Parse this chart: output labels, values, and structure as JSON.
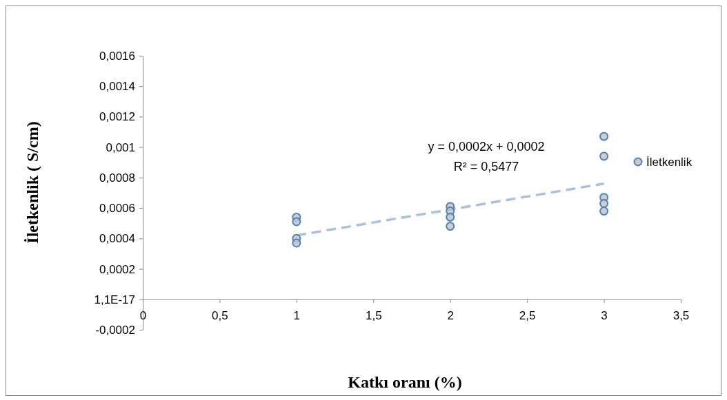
{
  "chart_data": {
    "type": "scatter",
    "xlabel": "Katkı oranı (%)",
    "ylabel": "İletkenlik ( S/cm)",
    "xlim": [
      0,
      3.5
    ],
    "ylim": [
      -0.0002,
      0.0016
    ],
    "xticks": [
      0,
      {
        "value": 0.5,
        "label": "0,5"
      },
      1,
      {
        "value": 1.5,
        "label": "1,5"
      },
      2,
      {
        "value": 2.5,
        "label": "2,5"
      },
      3,
      {
        "value": 3.5,
        "label": "3,5"
      }
    ],
    "yticks": [
      {
        "value": -0.0002,
        "label": "-0,0002"
      },
      {
        "value": 0,
        "label": "1,1E-17"
      },
      {
        "value": 0.0002,
        "label": "0,0002"
      },
      {
        "value": 0.0004,
        "label": "0,0004"
      },
      {
        "value": 0.0006,
        "label": "0,0006"
      },
      {
        "value": 0.0008,
        "label": "0,0008"
      },
      {
        "value": 0.001,
        "label": "0,001"
      },
      {
        "value": 0.0012,
        "label": "0,0012"
      },
      {
        "value": 0.0014,
        "label": "0,0014"
      },
      {
        "value": 0.0016,
        "label": "0,0016"
      }
    ],
    "grid": false,
    "legend": "right",
    "annotations": [
      "y = 0,0002x + 0,0002",
      "R² = 0,5477"
    ],
    "series": [
      {
        "name": "İletkenlik",
        "color": "#4f81bd",
        "marker": "circle",
        "x": [
          1,
          1,
          1,
          1,
          2,
          2,
          2,
          2,
          3,
          3,
          3,
          3,
          3
        ],
        "values": [
          0.00054,
          0.00051,
          0.0004,
          0.00037,
          0.00061,
          0.00058,
          0.00054,
          0.00048,
          0.00107,
          0.00094,
          0.00067,
          0.00063,
          0.00058
        ]
      },
      {
        "type": "line",
        "color": "#a7c1e2",
        "line_style": "dashed",
        "marker": "none",
        "x": [
          1,
          3
        ],
        "values": [
          0.00042,
          0.00076
        ]
      }
    ]
  }
}
